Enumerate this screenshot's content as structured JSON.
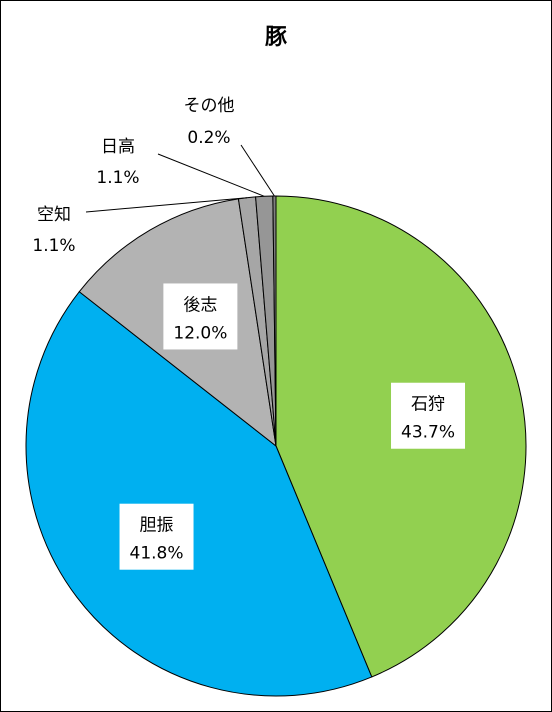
{
  "chart_data": {
    "type": "pie",
    "title": "豚",
    "slices": [
      {
        "name": "石狩",
        "value": 43.7,
        "pct_label": "43.7%",
        "color": "#92D050"
      },
      {
        "name": "胆振",
        "value": 41.8,
        "pct_label": "41.8%",
        "color": "#00B0F0"
      },
      {
        "name": "後志",
        "value": 12.0,
        "pct_label": "12.0%",
        "color": "#B3B3B3"
      },
      {
        "name": "空知",
        "value": 1.1,
        "pct_label": "1.1%",
        "color": "#A6A6A6"
      },
      {
        "name": "日高",
        "value": 1.1,
        "pct_label": "1.1%",
        "color": "#969696"
      },
      {
        "name": "その他",
        "value": 0.2,
        "pct_label": "0.2%",
        "color": "#808080"
      }
    ],
    "start": "12 o'clock",
    "direction": "clockwise",
    "legend": "none"
  }
}
